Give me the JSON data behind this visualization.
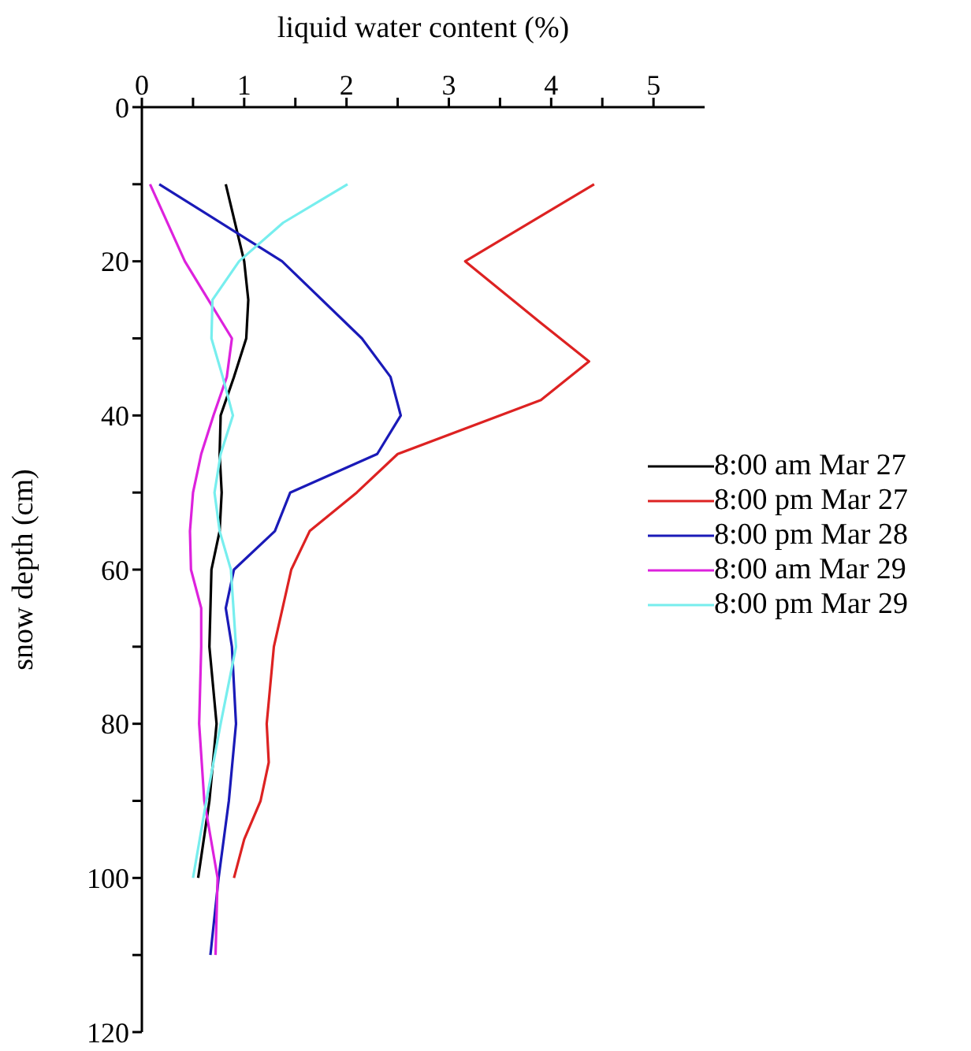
{
  "chart_data": {
    "type": "line",
    "xlabel": "liquid water content (%)",
    "ylabel": "snow depth (cm)",
    "xlim": [
      0,
      5.5
    ],
    "xticks": [
      0,
      {
        "value": 0.5,
        "label": null
      },
      1,
      {
        "value": 1.5,
        "label": null
      },
      2,
      {
        "value": 2.5,
        "label": null
      },
      3,
      {
        "value": 3.5,
        "label": null
      },
      4,
      {
        "value": 4.5,
        "label": null
      },
      5
    ],
    "ylim": [
      120,
      0
    ],
    "yticks": [
      0,
      {
        "value": 10,
        "label": null
      },
      20,
      {
        "value": 30,
        "label": null
      },
      40,
      {
        "value": 50,
        "label": null
      },
      60,
      {
        "value": 70,
        "label": null
      },
      80,
      {
        "value": 90,
        "label": null
      },
      100,
      {
        "value": 110,
        "label": null
      },
      120
    ],
    "grid": false,
    "legend": "right",
    "marker": "none",
    "line_style": "solid",
    "series": [
      {
        "name": "8:00 am Mar 27",
        "color": "#000000",
        "x": [
          0.82,
          1.0,
          1.04,
          1.02,
          0.9,
          0.77,
          0.76,
          0.78,
          0.76,
          0.68,
          0.66,
          0.73,
          0.66,
          0.55
        ],
        "values": [
          10,
          20,
          25,
          30,
          35,
          40,
          45,
          50,
          55,
          60,
          70,
          80,
          90,
          100
        ]
      },
      {
        "name": "8:00 pm Mar 27",
        "color": "#dd2222",
        "x": [
          4.42,
          3.16,
          3.9,
          4.37,
          3.9,
          2.5,
          2.1,
          1.64,
          1.46,
          1.29,
          1.22,
          1.24,
          1.16,
          1.0,
          0.9
        ],
        "values": [
          10,
          20,
          28,
          33,
          38,
          45,
          50,
          55,
          60,
          70,
          80,
          85,
          90,
          95,
          100
        ]
      },
      {
        "name": "8:00 pm Mar 28",
        "color": "#1a1ab8",
        "x": [
          0.17,
          1.37,
          2.15,
          2.43,
          2.53,
          2.3,
          1.45,
          1.3,
          0.9,
          0.82,
          0.88,
          0.92,
          0.85,
          0.75,
          0.67
        ],
        "values": [
          10,
          20,
          30,
          35,
          40,
          45,
          50,
          55,
          60,
          65,
          70,
          80,
          90,
          100,
          110
        ]
      },
      {
        "name": "8:00 am Mar 29",
        "color": "#dd22dd",
        "x": [
          0.08,
          0.42,
          0.65,
          0.88,
          0.83,
          0.7,
          0.58,
          0.5,
          0.47,
          0.48,
          0.58,
          0.58,
          0.56,
          0.61,
          0.74,
          0.72
        ],
        "values": [
          10,
          20,
          25,
          30,
          35,
          40,
          45,
          50,
          55,
          60,
          65,
          70,
          80,
          90,
          100,
          110
        ]
      },
      {
        "name": "8:00 pm Mar 29",
        "color": "#77eeee",
        "x": [
          2.01,
          1.38,
          0.95,
          0.69,
          0.68,
          0.79,
          0.89,
          0.77,
          0.71,
          0.76,
          0.87,
          0.92,
          0.77,
          0.63,
          0.5
        ],
        "values": [
          10,
          15,
          20,
          25,
          30,
          35,
          40,
          45,
          50,
          55,
          60,
          70,
          80,
          90,
          100
        ]
      }
    ]
  }
}
